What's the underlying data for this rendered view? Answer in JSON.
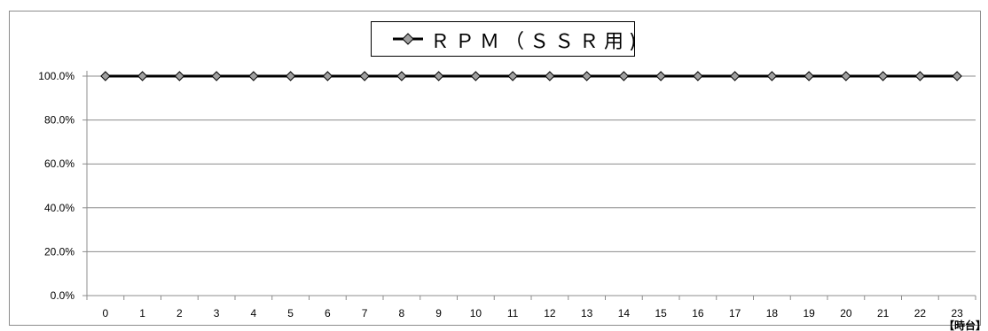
{
  "chart_data": {
    "type": "line",
    "legend": {
      "entries": [
        "ＲＰＭ（ＳＳＲ用)"
      ],
      "placement": "top-center"
    },
    "x": [
      0,
      1,
      2,
      3,
      4,
      5,
      6,
      7,
      8,
      9,
      10,
      11,
      12,
      13,
      14,
      15,
      16,
      17,
      18,
      19,
      20,
      21,
      22,
      23
    ],
    "x_tick_labels": [
      "0",
      "1",
      "2",
      "3",
      "4",
      "5",
      "6",
      "7",
      "8",
      "9",
      "10",
      "11",
      "12",
      "13",
      "14",
      "15",
      "16",
      "17",
      "18",
      "19",
      "20",
      "21",
      "22",
      "23"
    ],
    "xunit_label": "【時台】",
    "y_tick_labels": [
      "0.0%",
      "20.0%",
      "40.0%",
      "60.0%",
      "80.0%",
      "100.0%"
    ],
    "y_ticks": [
      0,
      0.2,
      0.4,
      0.6,
      0.8,
      1.0
    ],
    "ylim": [
      0,
      1.0
    ],
    "grid": "horizontal",
    "series": [
      {
        "name": "ＲＰＭ（ＳＳＲ用)",
        "color": "#000000",
        "marker_color": "#a0a0a0",
        "marker": "diamond",
        "values": [
          1.0,
          1.0,
          1.0,
          1.0,
          1.0,
          1.0,
          1.0,
          1.0,
          1.0,
          1.0,
          1.0,
          1.0,
          1.0,
          1.0,
          1.0,
          1.0,
          1.0,
          1.0,
          1.0,
          1.0,
          1.0,
          1.0,
          1.0,
          1.0
        ]
      }
    ]
  }
}
